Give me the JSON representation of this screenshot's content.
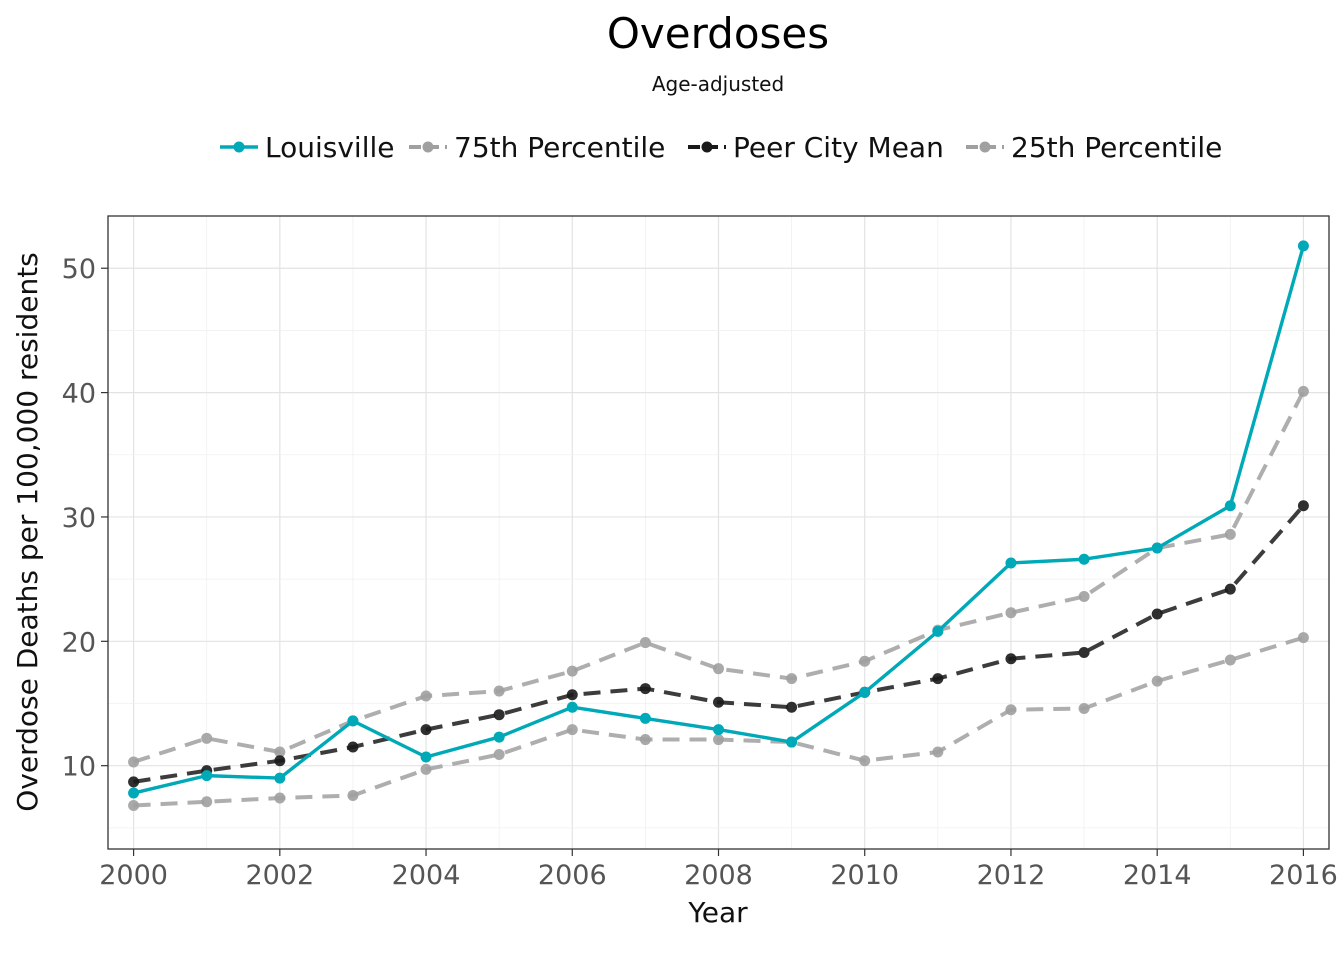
{
  "chart_data": {
    "type": "line",
    "title": "Overdoses",
    "subtitle": "Age-adjusted",
    "xlabel": "Year",
    "ylabel": "Overdose Deaths per 100,000 residents",
    "xlim": [
      1999.65,
      2016.35
    ],
    "ylim": [
      3.3,
      54.2
    ],
    "xticks": [
      2000,
      2002,
      2004,
      2006,
      2008,
      2010,
      2012,
      2014,
      2016
    ],
    "yticks": [
      10,
      20,
      30,
      40,
      50
    ],
    "grid": true,
    "legend_position": "top",
    "x": [
      2000,
      2001,
      2002,
      2003,
      2004,
      2005,
      2006,
      2007,
      2008,
      2009,
      2010,
      2011,
      2012,
      2013,
      2014,
      2015,
      2016
    ],
    "series": [
      {
        "name": "Louisville",
        "color": "#00a9b7",
        "style": "solid",
        "values": [
          7.8,
          9.2,
          9.0,
          13.6,
          10.7,
          12.3,
          14.7,
          13.8,
          12.9,
          11.9,
          15.9,
          20.8,
          26.3,
          26.6,
          27.5,
          30.9,
          51.8
        ]
      },
      {
        "name": "75th Percentile",
        "color": "#a0a0a0",
        "style": "dashed",
        "values": [
          10.3,
          12.2,
          11.1,
          13.6,
          15.6,
          16.0,
          17.6,
          19.9,
          17.8,
          17.0,
          18.4,
          20.9,
          22.3,
          23.6,
          27.5,
          28.6,
          40.1
        ]
      },
      {
        "name": "Peer City Mean",
        "color": "#1a1a1a",
        "style": "dashed",
        "values": [
          8.7,
          9.6,
          10.4,
          11.5,
          12.9,
          14.1,
          15.7,
          16.2,
          15.1,
          14.7,
          15.9,
          17.0,
          18.6,
          19.1,
          22.2,
          24.2,
          30.9
        ]
      },
      {
        "name": "25th Percentile",
        "color": "#a0a0a0",
        "style": "dashed",
        "values": [
          6.8,
          7.1,
          7.4,
          7.6,
          9.7,
          10.9,
          12.9,
          12.1,
          12.1,
          11.9,
          10.4,
          11.1,
          14.5,
          14.6,
          16.8,
          18.5,
          20.3
        ]
      }
    ]
  }
}
